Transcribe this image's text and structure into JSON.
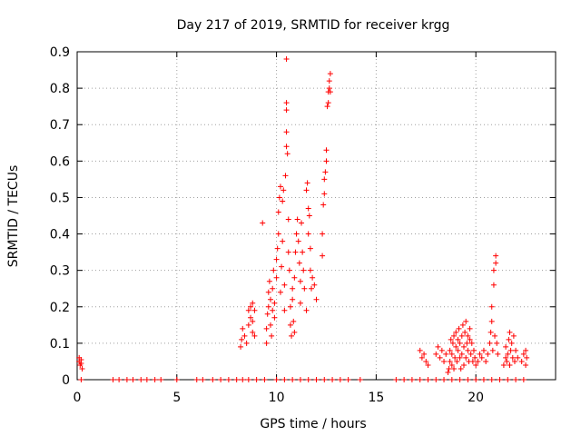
{
  "chart_data": {
    "type": "scatter",
    "title": "Day 217 of 2019, SRMTID for receiver krgg",
    "xlabel": "GPS time / hours",
    "ylabel": "SRMTID / TECUs",
    "xlim": [
      0,
      24
    ],
    "ylim": [
      0,
      0.9
    ],
    "xticks": [
      0,
      5,
      10,
      15,
      20
    ],
    "xtick_labels": [
      "0",
      "5",
      "10",
      "15",
      "20"
    ],
    "yticks": [
      0,
      0.1,
      0.2,
      0.3,
      0.4,
      0.5,
      0.6,
      0.7,
      0.8,
      0.9
    ],
    "ytick_labels": [
      "0",
      "0.1",
      "0.2",
      "0.3",
      "0.4",
      "0.5",
      "0.6",
      "0.7",
      "0.8",
      "0.9"
    ],
    "grid": true,
    "marker": "+",
    "color": "#ff0000",
    "series": [
      {
        "name": "SRMTID",
        "points": [
          [
            0.1,
            0.06
          ],
          [
            0.1,
            0.05
          ],
          [
            0.15,
            0.04
          ],
          [
            0.2,
            0.055
          ],
          [
            0.25,
            0.03
          ],
          [
            0.2,
            0.045
          ],
          [
            0.2,
            0
          ],
          [
            1.8,
            0
          ],
          [
            2.1,
            0
          ],
          [
            2.5,
            0
          ],
          [
            2.8,
            0
          ],
          [
            3.2,
            0
          ],
          [
            3.5,
            0
          ],
          [
            3.9,
            0
          ],
          [
            4.2,
            0
          ],
          [
            5.0,
            0
          ],
          [
            6.0,
            0
          ],
          [
            6.3,
            0
          ],
          [
            6.8,
            0
          ],
          [
            7.2,
            0
          ],
          [
            7.6,
            0
          ],
          [
            8.0,
            0
          ],
          [
            8.3,
            0
          ],
          [
            8.6,
            0
          ],
          [
            9.0,
            0
          ],
          [
            9.4,
            0
          ],
          [
            10.0,
            0
          ],
          [
            10.4,
            0
          ],
          [
            10.8,
            0
          ],
          [
            11.2,
            0
          ],
          [
            11.6,
            0
          ],
          [
            12.0,
            0
          ],
          [
            12.4,
            0
          ],
          [
            12.8,
            0
          ],
          [
            13.2,
            0
          ],
          [
            13.6,
            0
          ],
          [
            14.2,
            0
          ],
          [
            16.0,
            0
          ],
          [
            16.4,
            0
          ],
          [
            16.8,
            0
          ],
          [
            17.2,
            0
          ],
          [
            17.6,
            0
          ],
          [
            18.0,
            0
          ],
          [
            18.4,
            0
          ],
          [
            18.8,
            0
          ],
          [
            19.2,
            0
          ],
          [
            19.6,
            0
          ],
          [
            20.0,
            0
          ],
          [
            20.4,
            0
          ],
          [
            20.8,
            0
          ],
          [
            21.2,
            0
          ],
          [
            21.6,
            0
          ],
          [
            22.0,
            0
          ],
          [
            22.4,
            0
          ],
          [
            8.2,
            0.09
          ],
          [
            8.25,
            0.11
          ],
          [
            8.3,
            0.14
          ],
          [
            8.4,
            0.12
          ],
          [
            8.5,
            0.1
          ],
          [
            8.6,
            0.15
          ],
          [
            8.6,
            0.19
          ],
          [
            8.7,
            0.17
          ],
          [
            8.7,
            0.2
          ],
          [
            8.8,
            0.13
          ],
          [
            8.8,
            0.16
          ],
          [
            8.9,
            0.12
          ],
          [
            8.9,
            0.19
          ],
          [
            8.8,
            0.21
          ],
          [
            9.3,
            0.43
          ],
          [
            9.5,
            0.1
          ],
          [
            9.5,
            0.14
          ],
          [
            9.55,
            0.18
          ],
          [
            9.6,
            0.2
          ],
          [
            9.6,
            0.24
          ],
          [
            9.65,
            0.27
          ],
          [
            9.7,
            0.15
          ],
          [
            9.7,
            0.22
          ],
          [
            9.75,
            0.12
          ],
          [
            9.8,
            0.19
          ],
          [
            9.8,
            0.25
          ],
          [
            9.85,
            0.3
          ],
          [
            9.9,
            0.21
          ],
          [
            9.9,
            0.17
          ],
          [
            10.0,
            0.28
          ],
          [
            10.0,
            0.33
          ],
          [
            10.05,
            0.36
          ],
          [
            10.1,
            0.4
          ],
          [
            10.1,
            0.46
          ],
          [
            10.15,
            0.5
          ],
          [
            10.2,
            0.53
          ],
          [
            10.2,
            0.24
          ],
          [
            10.25,
            0.31
          ],
          [
            10.3,
            0.38
          ],
          [
            10.3,
            0.49
          ],
          [
            10.35,
            0.52
          ],
          [
            10.4,
            0.19
          ],
          [
            10.4,
            0.26
          ],
          [
            10.45,
            0.56
          ],
          [
            10.5,
            0.88
          ],
          [
            10.5,
            0.76
          ],
          [
            10.5,
            0.74
          ],
          [
            10.5,
            0.68
          ],
          [
            10.5,
            0.64
          ],
          [
            10.55,
            0.62
          ],
          [
            10.6,
            0.44
          ],
          [
            10.6,
            0.35
          ],
          [
            10.65,
            0.3
          ],
          [
            10.7,
            0.2
          ],
          [
            10.7,
            0.15
          ],
          [
            10.75,
            0.12
          ],
          [
            10.8,
            0.25
          ],
          [
            10.8,
            0.22
          ],
          [
            10.85,
            0.16
          ],
          [
            10.9,
            0.13
          ],
          [
            10.9,
            0.28
          ],
          [
            10.95,
            0.35
          ],
          [
            11.0,
            0.4
          ],
          [
            11.05,
            0.44
          ],
          [
            11.1,
            0.38
          ],
          [
            11.15,
            0.32
          ],
          [
            11.2,
            0.27
          ],
          [
            11.2,
            0.21
          ],
          [
            11.25,
            0.43
          ],
          [
            11.3,
            0.35
          ],
          [
            11.35,
            0.3
          ],
          [
            11.4,
            0.25
          ],
          [
            11.5,
            0.19
          ],
          [
            11.5,
            0.52
          ],
          [
            11.55,
            0.54
          ],
          [
            11.6,
            0.47
          ],
          [
            11.6,
            0.4
          ],
          [
            11.65,
            0.45
          ],
          [
            11.7,
            0.36
          ],
          [
            11.7,
            0.3
          ],
          [
            11.75,
            0.25
          ],
          [
            11.8,
            0.28
          ],
          [
            11.9,
            0.26
          ],
          [
            12.0,
            0.22
          ],
          [
            12.3,
            0.34
          ],
          [
            12.3,
            0.4
          ],
          [
            12.35,
            0.48
          ],
          [
            12.4,
            0.51
          ],
          [
            12.4,
            0.55
          ],
          [
            12.45,
            0.57
          ],
          [
            12.5,
            0.6
          ],
          [
            12.5,
            0.63
          ],
          [
            12.55,
            0.75
          ],
          [
            12.6,
            0.76
          ],
          [
            12.6,
            0.79
          ],
          [
            12.65,
            0.8
          ],
          [
            12.65,
            0.82
          ],
          [
            12.7,
            0.84
          ],
          [
            12.7,
            0.79
          ],
          [
            17.2,
            0.08
          ],
          [
            17.3,
            0.06
          ],
          [
            17.4,
            0.07
          ],
          [
            17.5,
            0.05
          ],
          [
            17.6,
            0.04
          ],
          [
            18.0,
            0.07
          ],
          [
            18.1,
            0.09
          ],
          [
            18.2,
            0.06
          ],
          [
            18.3,
            0.08
          ],
          [
            18.4,
            0.05
          ],
          [
            18.5,
            0.07
          ],
          [
            18.6,
            0.02
          ],
          [
            18.65,
            0.03
          ],
          [
            18.7,
            0.05
          ],
          [
            18.7,
            0.08
          ],
          [
            18.75,
            0.11
          ],
          [
            18.8,
            0.04
          ],
          [
            18.8,
            0.07
          ],
          [
            18.85,
            0.1
          ],
          [
            18.9,
            0.12
          ],
          [
            18.9,
            0.03
          ],
          [
            18.95,
            0.06
          ],
          [
            19.0,
            0.09
          ],
          [
            19.0,
            0.13
          ],
          [
            19.05,
            0.05
          ],
          [
            19.1,
            0.08
          ],
          [
            19.1,
            0.11
          ],
          [
            19.15,
            0.14
          ],
          [
            19.2,
            0.06
          ],
          [
            19.2,
            0.1
          ],
          [
            19.25,
            0.03
          ],
          [
            19.3,
            0.07
          ],
          [
            19.3,
            0.12
          ],
          [
            19.35,
            0.15
          ],
          [
            19.4,
            0.04
          ],
          [
            19.4,
            0.09
          ],
          [
            19.45,
            0.13
          ],
          [
            19.5,
            0.16
          ],
          [
            19.5,
            0.06
          ],
          [
            19.55,
            0.1
          ],
          [
            19.6,
            0.08
          ],
          [
            19.6,
            0.12
          ],
          [
            19.65,
            0.05
          ],
          [
            19.7,
            0.11
          ],
          [
            19.7,
            0.14
          ],
          [
            19.75,
            0.07
          ],
          [
            19.8,
            0.1
          ],
          [
            19.85,
            0.05
          ],
          [
            19.9,
            0.08
          ],
          [
            19.95,
            0.06
          ],
          [
            20.0,
            0.04
          ],
          [
            20.1,
            0.05
          ],
          [
            20.2,
            0.07
          ],
          [
            20.3,
            0.06
          ],
          [
            20.4,
            0.08
          ],
          [
            20.5,
            0.05
          ],
          [
            20.6,
            0.07
          ],
          [
            20.7,
            0.1
          ],
          [
            20.75,
            0.13
          ],
          [
            20.8,
            0.16
          ],
          [
            20.8,
            0.2
          ],
          [
            20.85,
            0.08
          ],
          [
            20.9,
            0.26
          ],
          [
            20.9,
            0.3
          ],
          [
            20.95,
            0.12
          ],
          [
            21.0,
            0.32
          ],
          [
            21.0,
            0.34
          ],
          [
            21.05,
            0.1
          ],
          [
            21.1,
            0.07
          ],
          [
            21.4,
            0.04
          ],
          [
            21.5,
            0.06
          ],
          [
            21.5,
            0.09
          ],
          [
            21.55,
            0.05
          ],
          [
            21.6,
            0.07
          ],
          [
            21.65,
            0.11
          ],
          [
            21.7,
            0.13
          ],
          [
            21.7,
            0.04
          ],
          [
            21.75,
            0.08
          ],
          [
            21.8,
            0.1
          ],
          [
            21.85,
            0.06
          ],
          [
            21.9,
            0.12
          ],
          [
            21.95,
            0.05
          ],
          [
            22.0,
            0.08
          ],
          [
            22.1,
            0.06
          ],
          [
            22.3,
            0.05
          ],
          [
            22.4,
            0.07
          ],
          [
            22.5,
            0.04
          ],
          [
            22.5,
            0.08
          ],
          [
            22.55,
            0.06
          ]
        ]
      }
    ]
  }
}
